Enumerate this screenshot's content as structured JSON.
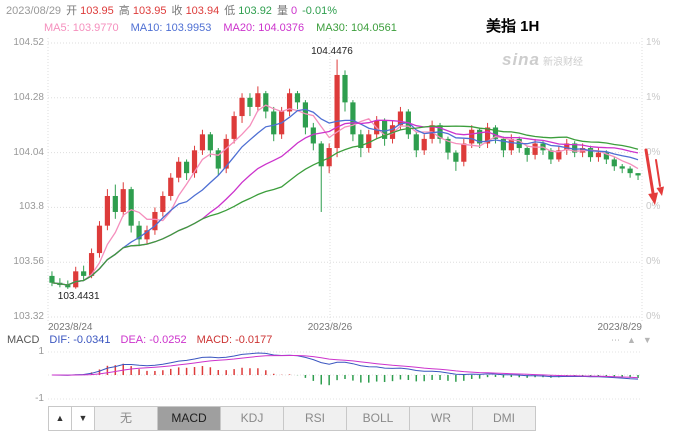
{
  "header": {
    "date": "2023/08/29",
    "stats": [
      {
        "key": "open",
        "label": "开",
        "value": "103.95",
        "color": "#dd3b3a"
      },
      {
        "key": "high",
        "label": "高",
        "value": "103.95",
        "color": "#dd3b3a"
      },
      {
        "key": "close",
        "label": "收",
        "value": "103.94",
        "color": "#dd3b3a"
      },
      {
        "key": "low",
        "label": "低",
        "value": "103.92",
        "color": "#2e9e4e"
      },
      {
        "key": "volume",
        "label": "量",
        "value": "0",
        "color": "#cc33cc"
      }
    ],
    "change": "-0.01%",
    "change_color": "#2e9e4e"
  },
  "title": "美指 1H",
  "watermark": {
    "logo": "sina",
    "text": "新浪财经"
  },
  "chart_data": {
    "type": "candlestick",
    "symbol": "美指",
    "period": "1H",
    "up_color": "#dd3b3a",
    "down_color": "#2e9e4e",
    "y_ticks": [
      104.52,
      104.28,
      104.04,
      103.8,
      103.56,
      103.32
    ],
    "pct_ticks": [
      "1%",
      "1%",
      "0%",
      "0%",
      "0%",
      "0%"
    ],
    "x_ticks": [
      "2023/8/24",
      "2023/8/26",
      "2023/8/29"
    ],
    "high_annotation": "104.4476",
    "low_annotation": "103.4431",
    "ma_legend": [
      {
        "key": "ma5",
        "label": "MA5:",
        "value": "103.9770",
        "period": 5,
        "color": "#f58fbd"
      },
      {
        "key": "ma10",
        "label": "MA10:",
        "value": "103.9953",
        "period": 10,
        "color": "#4e6fd3"
      },
      {
        "key": "ma20",
        "label": "MA20:",
        "value": "104.0376",
        "period": 20,
        "color": "#cc33cc"
      },
      {
        "key": "ma30",
        "label": "MA30:",
        "value": "104.0561",
        "period": 30,
        "color": "#3c9e3c"
      }
    ],
    "candles": [
      [
        103.5,
        103.52,
        103.455,
        103.47
      ],
      [
        103.47,
        103.49,
        103.45,
        103.46
      ],
      [
        103.46,
        103.48,
        103.4431,
        103.45
      ],
      [
        103.45,
        103.54,
        103.444,
        103.52
      ],
      [
        103.52,
        103.545,
        103.48,
        103.5
      ],
      [
        103.5,
        103.62,
        103.49,
        103.6
      ],
      [
        103.6,
        103.74,
        103.58,
        103.72
      ],
      [
        103.72,
        103.88,
        103.7,
        103.85
      ],
      [
        103.85,
        103.9,
        103.75,
        103.78
      ],
      [
        103.78,
        103.91,
        103.76,
        103.88
      ],
      [
        103.88,
        103.89,
        103.69,
        103.72
      ],
      [
        103.72,
        103.74,
        103.63,
        103.66
      ],
      [
        103.66,
        103.72,
        103.64,
        103.7
      ],
      [
        103.7,
        103.8,
        103.68,
        103.78
      ],
      [
        103.78,
        103.87,
        103.76,
        103.85
      ],
      [
        103.85,
        103.95,
        103.83,
        103.93
      ],
      [
        103.93,
        104.02,
        103.91,
        104.0
      ],
      [
        104.0,
        104.01,
        103.92,
        103.95
      ],
      [
        103.95,
        104.07,
        103.93,
        104.05
      ],
      [
        104.05,
        104.14,
        104.03,
        104.12
      ],
      [
        104.12,
        104.13,
        104.02,
        104.05
      ],
      [
        104.05,
        104.06,
        103.94,
        103.97
      ],
      [
        103.97,
        104.12,
        103.95,
        104.1
      ],
      [
        104.1,
        104.22,
        104.08,
        104.2
      ],
      [
        104.2,
        104.3,
        104.17,
        104.28
      ],
      [
        104.28,
        104.3,
        104.2,
        104.24
      ],
      [
        104.24,
        104.33,
        104.22,
        104.3
      ],
      [
        104.3,
        104.31,
        104.19,
        104.22
      ],
      [
        104.22,
        104.24,
        104.09,
        104.12
      ],
      [
        104.12,
        104.24,
        104.1,
        104.22
      ],
      [
        104.22,
        104.32,
        104.2,
        104.3
      ],
      [
        104.3,
        104.31,
        104.23,
        104.26
      ],
      [
        104.26,
        104.27,
        104.12,
        104.15
      ],
      [
        104.15,
        104.17,
        104.05,
        104.08
      ],
      [
        104.08,
        104.09,
        103.78,
        103.98
      ],
      [
        103.98,
        104.08,
        103.95,
        104.06
      ],
      [
        104.06,
        104.4476,
        104.02,
        104.38
      ],
      [
        104.38,
        104.4,
        104.22,
        104.26
      ],
      [
        104.26,
        104.27,
        104.09,
        104.12
      ],
      [
        104.12,
        104.14,
        104.02,
        104.06
      ],
      [
        104.06,
        104.14,
        104.04,
        104.12
      ],
      [
        104.12,
        104.2,
        104.1,
        104.18
      ],
      [
        104.18,
        104.19,
        104.07,
        104.1
      ],
      [
        104.1,
        104.18,
        104.08,
        104.16
      ],
      [
        104.16,
        104.24,
        104.14,
        104.22
      ],
      [
        104.22,
        104.23,
        104.1,
        104.12
      ],
      [
        104.12,
        104.13,
        104.02,
        104.05
      ],
      [
        104.05,
        104.12,
        104.03,
        104.1
      ],
      [
        104.1,
        104.18,
        104.08,
        104.16
      ],
      [
        104.16,
        104.17,
        104.08,
        104.1
      ],
      [
        104.1,
        104.11,
        104.01,
        104.04
      ],
      [
        104.04,
        104.05,
        103.96,
        104.0
      ],
      [
        104.0,
        104.1,
        103.98,
        104.08
      ],
      [
        104.08,
        104.16,
        104.06,
        104.14
      ],
      [
        104.14,
        104.15,
        104.06,
        104.08
      ],
      [
        104.08,
        104.17,
        104.06,
        104.15
      ],
      [
        104.15,
        104.16,
        104.08,
        104.1
      ],
      [
        104.1,
        104.11,
        104.02,
        104.05
      ],
      [
        104.05,
        104.12,
        104.03,
        104.1
      ],
      [
        104.1,
        104.11,
        104.04,
        104.06
      ],
      [
        104.06,
        104.07,
        104.0,
        104.03
      ],
      [
        104.03,
        104.1,
        104.01,
        104.08
      ],
      [
        104.08,
        104.09,
        104.03,
        104.05
      ],
      [
        104.05,
        104.06,
        103.99,
        104.01
      ],
      [
        104.01,
        104.07,
        104.0,
        104.05
      ],
      [
        104.05,
        104.1,
        104.03,
        104.08
      ],
      [
        104.08,
        104.09,
        104.02,
        104.04
      ],
      [
        104.04,
        104.08,
        104.02,
        104.06
      ],
      [
        104.06,
        104.07,
        104.0,
        104.02
      ],
      [
        104.02,
        104.06,
        104.0,
        104.04
      ],
      [
        104.04,
        104.05,
        103.99,
        104.01
      ],
      [
        104.01,
        104.02,
        103.96,
        103.98
      ],
      [
        103.98,
        103.99,
        103.95,
        103.97
      ],
      [
        103.97,
        103.98,
        103.93,
        103.95
      ],
      [
        103.95,
        103.95,
        103.92,
        103.94
      ]
    ]
  },
  "macd_panel": {
    "label": "MACD",
    "items": [
      {
        "key": "dif",
        "label": "DIF:",
        "value": "-0.0341",
        "color": "#3b56c0"
      },
      {
        "key": "dea",
        "label": "DEA:",
        "value": "-0.0252",
        "color": "#cc33cc"
      },
      {
        "key": "macd",
        "label": "MACD:",
        "value": "-0.0177",
        "color": "#cc3333"
      }
    ],
    "y_ticks": [
      "1",
      "-1"
    ],
    "icons": {
      "more": "⋯",
      "up": "▲",
      "down": "▼"
    }
  },
  "toolbar": {
    "up_button": "▲",
    "down_button": "▼",
    "tabs": [
      {
        "key": "none",
        "label": "无",
        "active": false
      },
      {
        "key": "macd",
        "label": "MACD",
        "active": true
      },
      {
        "key": "kdj",
        "label": "KDJ",
        "active": false
      },
      {
        "key": "rsi",
        "label": "RSI",
        "active": false
      },
      {
        "key": "boll",
        "label": "BOLL",
        "active": false
      },
      {
        "key": "wr",
        "label": "WR",
        "active": false
      },
      {
        "key": "dmi",
        "label": "DMI",
        "active": false
      }
    ]
  }
}
